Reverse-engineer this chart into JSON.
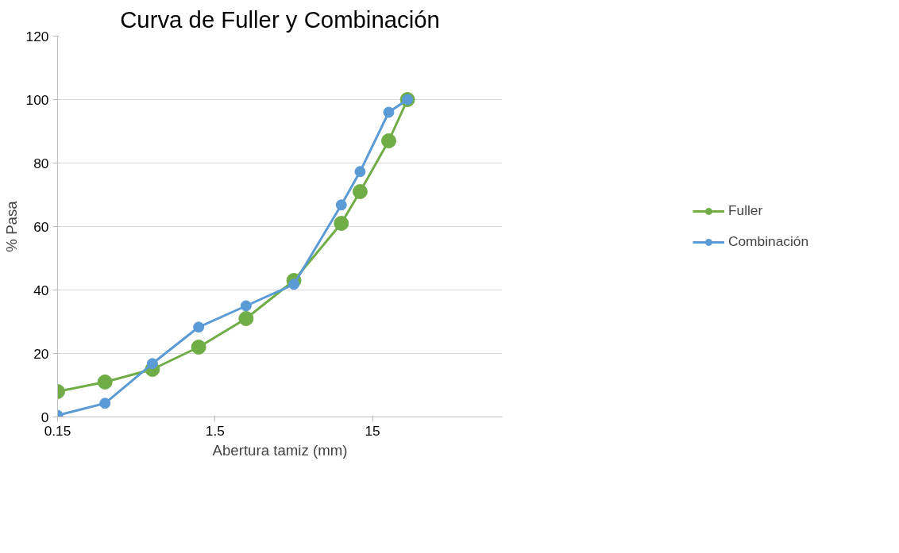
{
  "chart_data": {
    "type": "line",
    "title": "Curva de Fuller y Combinación",
    "xlabel": "Abertura tamiz (mm)",
    "ylabel": "% Pasa",
    "x": [
      0.15,
      0.3,
      0.6,
      1.18,
      2.36,
      4.75,
      9.5,
      12.5,
      19,
      25
    ],
    "series": [
      {
        "name": "Fuller",
        "color": "#70ad47",
        "values": [
          8,
          11,
          15,
          22,
          31,
          43,
          61,
          71,
          87,
          100
        ]
      },
      {
        "name": "Combinación",
        "color": "#5b9bd5",
        "values": [
          0.5,
          4.3,
          16.8,
          28.3,
          35,
          41.8,
          66.8,
          77.3,
          96,
          100
        ]
      }
    ],
    "log": "x",
    "xlim": [
      0.15,
      100
    ],
    "xticks": [
      0.15,
      1.5,
      15
    ],
    "ylim": [
      0,
      120
    ],
    "yticks": [
      0,
      20,
      40,
      60,
      80,
      100,
      120
    ],
    "grid": "y",
    "legend": "right",
    "marker": "circle",
    "line_style": "solid"
  }
}
